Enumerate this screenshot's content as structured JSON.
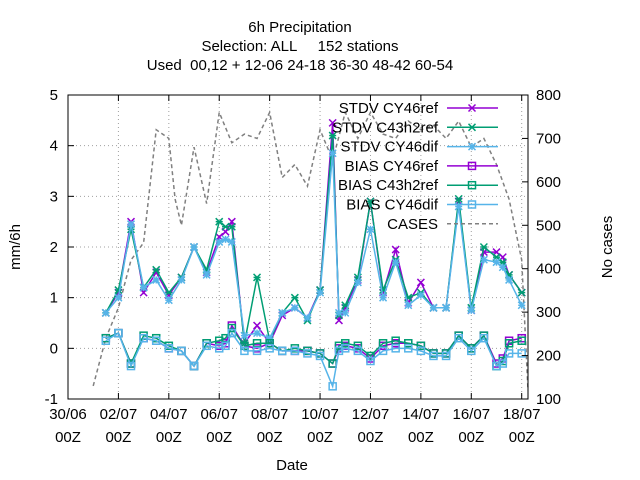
{
  "chart_data": {
    "type": "line",
    "title_lines": [
      "6h Precipitation",
      "Selection: ALL     152 stations",
      "Used  00,12 + 12-06 24-18 36-30 48-42 60-54"
    ],
    "xlabel": "Date",
    "ylabel": "mm/6h",
    "y2label": "No cases",
    "xlim": [
      "2024-06-30 00:00",
      "2024-07-18 06:00"
    ],
    "ylim": [
      -1,
      5
    ],
    "y2lim": [
      100,
      800
    ],
    "x_ticks": [
      {
        "line1": "30/06",
        "line2": "00Z"
      },
      {
        "line1": "02/07",
        "line2": "00Z"
      },
      {
        "line1": "04/07",
        "line2": "00Z"
      },
      {
        "line1": "06/07",
        "line2": "00Z"
      },
      {
        "line1": "08/07",
        "line2": "00Z"
      },
      {
        "line1": "10/07",
        "line2": "00Z"
      },
      {
        "line1": "12/07",
        "line2": "00Z"
      },
      {
        "line1": "14/07",
        "line2": "00Z"
      },
      {
        "line1": "16/07",
        "line2": "00Z"
      },
      {
        "line1": "18/07",
        "line2": "00Z"
      }
    ],
    "y_ticks": [
      "-1",
      "0",
      "1",
      "2",
      "3",
      "4",
      "5"
    ],
    "y2_ticks": [
      "100",
      "200",
      "300",
      "400",
      "500",
      "600",
      "700",
      "800"
    ],
    "grid": true,
    "legend_position": "top-right",
    "x": [
      "2024-07-01 12:00",
      "2024-07-02 00:00",
      "2024-07-02 12:00",
      "2024-07-03 00:00",
      "2024-07-03 12:00",
      "2024-07-04 00:00",
      "2024-07-04 12:00",
      "2024-07-05 00:00",
      "2024-07-05 12:00",
      "2024-07-06 00:00",
      "2024-07-06 06:00",
      "2024-07-06 12:00",
      "2024-07-07 00:00",
      "2024-07-07 12:00",
      "2024-07-08 00:00",
      "2024-07-08 12:00",
      "2024-07-09 00:00",
      "2024-07-09 12:00",
      "2024-07-10 00:00",
      "2024-07-10 12:00",
      "2024-07-10 18:00",
      "2024-07-11 00:00",
      "2024-07-11 12:00",
      "2024-07-12 00:00",
      "2024-07-12 12:00",
      "2024-07-13 00:00",
      "2024-07-13 12:00",
      "2024-07-14 00:00",
      "2024-07-14 12:00",
      "2024-07-15 00:00",
      "2024-07-15 12:00",
      "2024-07-16 00:00",
      "2024-07-16 12:00",
      "2024-07-17 00:00",
      "2024-07-17 06:00",
      "2024-07-17 12:00",
      "2024-07-18 00:00"
    ],
    "series": [
      {
        "name": "STDV CY46ref",
        "color": "#9400d3",
        "marker": "x",
        "values": [
          0.7,
          1.1,
          2.5,
          1.1,
          1.5,
          1.05,
          1.4,
          2.0,
          1.5,
          2.2,
          2.3,
          2.5,
          0.1,
          0.45,
          0.1,
          0.65,
          0.8,
          0.6,
          1.15,
          4.45,
          0.55,
          0.8,
          1.35,
          2.9,
          1.1,
          1.95,
          0.9,
          1.3,
          0.8,
          0.8,
          2.9,
          0.75,
          1.9,
          1.9,
          1.8,
          1.45,
          1.1
        ]
      },
      {
        "name": "STDV C43h2ref",
        "color": "#009e73",
        "marker": "asterisk",
        "values": [
          0.7,
          1.15,
          2.35,
          1.2,
          1.55,
          1.1,
          1.4,
          2.0,
          1.55,
          2.5,
          2.4,
          2.4,
          0.1,
          1.4,
          0.15,
          0.7,
          1.0,
          0.55,
          1.15,
          4.2,
          0.65,
          0.85,
          1.4,
          2.9,
          1.15,
          1.75,
          1.0,
          1.1,
          0.8,
          0.8,
          2.95,
          0.8,
          2.0,
          1.8,
          1.7,
          1.45,
          1.1
        ]
      },
      {
        "name": "STDV CY46dif",
        "color": "#56b4e9",
        "marker": "star",
        "values": [
          0.7,
          1.0,
          2.45,
          1.2,
          1.35,
          0.95,
          1.35,
          2.0,
          1.45,
          2.1,
          2.15,
          2.1,
          0.25,
          0.3,
          0.2,
          0.7,
          0.8,
          0.6,
          1.1,
          3.85,
          0.7,
          0.7,
          1.3,
          2.35,
          1.0,
          1.7,
          0.85,
          1.05,
          0.8,
          0.8,
          2.8,
          0.75,
          1.75,
          1.7,
          1.6,
          1.35,
          0.85
        ]
      },
      {
        "name": "BIAS CY46ref",
        "color": "#9400d3",
        "marker": "square",
        "values": [
          0.2,
          0.3,
          -0.3,
          0.2,
          0.15,
          0.0,
          -0.05,
          -0.35,
          0.1,
          0.05,
          0.1,
          0.45,
          0.05,
          0.0,
          0.1,
          -0.05,
          -0.05,
          -0.05,
          -0.1,
          -0.3,
          0.0,
          0.05,
          0.0,
          -0.2,
          0.05,
          0.1,
          0.1,
          0.05,
          -0.1,
          -0.1,
          0.25,
          0.0,
          0.25,
          -0.3,
          -0.2,
          0.15,
          0.2
        ]
      },
      {
        "name": "BIAS C43h2ref",
        "color": "#009e73",
        "marker": "square",
        "values": [
          0.2,
          0.3,
          -0.3,
          0.25,
          0.2,
          0.05,
          -0.05,
          -0.35,
          0.1,
          0.15,
          0.2,
          0.4,
          0.05,
          0.1,
          0.1,
          -0.05,
          0.0,
          -0.05,
          -0.1,
          -0.3,
          0.05,
          0.1,
          0.05,
          -0.15,
          0.1,
          0.15,
          0.1,
          0.05,
          -0.1,
          -0.1,
          0.25,
          0.0,
          0.25,
          -0.35,
          -0.25,
          0.1,
          0.15
        ]
      },
      {
        "name": "BIAS CY46dif",
        "color": "#56b4e9",
        "marker": "square",
        "values": [
          0.15,
          0.3,
          -0.35,
          0.2,
          0.15,
          0.0,
          -0.05,
          -0.35,
          0.05,
          0.0,
          0.05,
          0.3,
          -0.05,
          -0.05,
          0.0,
          -0.05,
          -0.05,
          -0.1,
          -0.15,
          -0.75,
          -0.05,
          0.0,
          -0.05,
          -0.25,
          -0.05,
          0.0,
          0.0,
          -0.05,
          -0.15,
          -0.15,
          0.2,
          -0.05,
          0.2,
          -0.35,
          -0.3,
          -0.1,
          -0.1
        ]
      },
      {
        "name": "CASES",
        "color": "#808080",
        "axis": "y2",
        "dashed": true,
        "x": [
          "2024-07-01 00:00",
          "2024-07-01 12:00",
          "2024-07-02 00:00",
          "2024-07-02 12:00",
          "2024-07-03 00:00",
          "2024-07-03 12:00",
          "2024-07-04 00:00",
          "2024-07-04 06:00",
          "2024-07-04 12:00",
          "2024-07-05 00:00",
          "2024-07-05 12:00",
          "2024-07-06 00:00",
          "2024-07-06 12:00",
          "2024-07-07 00:00",
          "2024-07-07 12:00",
          "2024-07-08 00:00",
          "2024-07-08 12:00",
          "2024-07-09 00:00",
          "2024-07-09 12:00",
          "2024-07-10 00:00",
          "2024-07-10 12:00",
          "2024-07-11 00:00",
          "2024-07-11 12:00",
          "2024-07-12 00:00",
          "2024-07-12 12:00",
          "2024-07-13 00:00",
          "2024-07-13 12:00",
          "2024-07-14 00:00",
          "2024-07-14 12:00",
          "2024-07-15 00:00",
          "2024-07-15 12:00",
          "2024-07-16 00:00",
          "2024-07-16 12:00",
          "2024-07-17 00:00",
          "2024-07-17 12:00",
          "2024-07-18 00:00",
          "2024-07-18 06:00"
        ],
        "values": [
          130,
          240,
          310,
          420,
          460,
          720,
          700,
          560,
          500,
          680,
          550,
          760,
          690,
          710,
          700,
          760,
          610,
          640,
          590,
          720,
          650,
          760,
          700,
          760,
          710,
          700,
          740,
          720,
          730,
          700,
          740,
          680,
          700,
          640,
          560,
          420,
          120
        ]
      }
    ]
  }
}
